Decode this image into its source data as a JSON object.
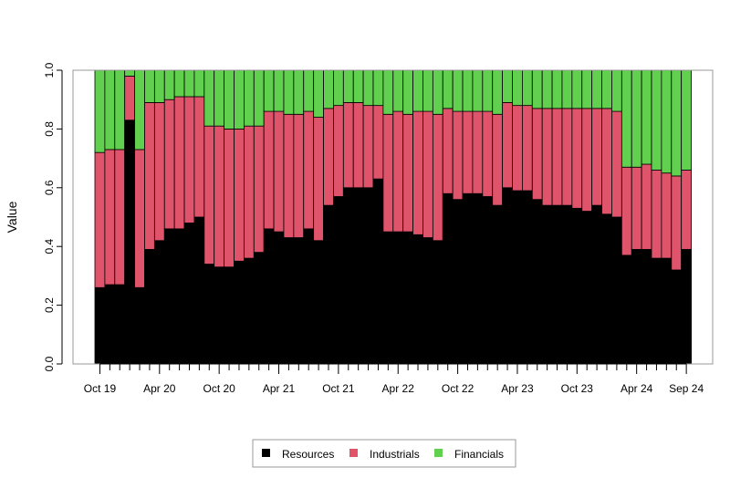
{
  "chart_data": {
    "type": "bar",
    "stacked": true,
    "title": "",
    "xlabel": "",
    "ylabel": "Value",
    "ylim": [
      0,
      1
    ],
    "y_ticks": [
      "0.0",
      "0.2",
      "0.4",
      "0.6",
      "0.8",
      "1.0"
    ],
    "x_tick_labels": [
      "Oct 19",
      "Apr 20",
      "Oct 20",
      "Apr 21",
      "Oct 21",
      "Apr 22",
      "Oct 22",
      "Apr 23",
      "Oct 23",
      "Apr 24",
      "Sep 24"
    ],
    "x_tick_label_bar_index": [
      0,
      6,
      12,
      18,
      24,
      30,
      36,
      42,
      48,
      54,
      59
    ],
    "grid": false,
    "legend_position": "bottom",
    "categories": [
      "Oct 19",
      "Nov 19",
      "Dec 19",
      "Jan 20",
      "Feb 20",
      "Mar 20",
      "Apr 20",
      "May 20",
      "Jun 20",
      "Jul 20",
      "Aug 20",
      "Sep 20",
      "Oct 20",
      "Nov 20",
      "Dec 20",
      "Jan 21",
      "Feb 21",
      "Mar 21",
      "Apr 21",
      "May 21",
      "Jun 21",
      "Jul 21",
      "Aug 21",
      "Sep 21",
      "Oct 21",
      "Nov 21",
      "Dec 21",
      "Jan 22",
      "Feb 22",
      "Mar 22",
      "Apr 22",
      "May 22",
      "Jun 22",
      "Jul 22",
      "Aug 22",
      "Sep 22",
      "Oct 22",
      "Nov 22",
      "Dec 22",
      "Jan 23",
      "Feb 23",
      "Mar 23",
      "Apr 23",
      "May 23",
      "Jun 23",
      "Jul 23",
      "Aug 23",
      "Sep 23",
      "Oct 23",
      "Nov 23",
      "Dec 23",
      "Jan 24",
      "Feb 24",
      "Mar 24",
      "Apr 24",
      "May 24",
      "Jun 24",
      "Jul 24",
      "Aug 24",
      "Sep 24"
    ],
    "series": [
      {
        "name": "Resources",
        "color": "#000000",
        "values": [
          0.26,
          0.27,
          0.27,
          0.83,
          0.26,
          0.39,
          0.42,
          0.46,
          0.46,
          0.48,
          0.5,
          0.34,
          0.33,
          0.33,
          0.35,
          0.36,
          0.38,
          0.46,
          0.45,
          0.43,
          0.43,
          0.46,
          0.42,
          0.54,
          0.57,
          0.6,
          0.6,
          0.6,
          0.63,
          0.45,
          0.45,
          0.45,
          0.44,
          0.43,
          0.42,
          0.58,
          0.56,
          0.58,
          0.58,
          0.57,
          0.54,
          0.6,
          0.59,
          0.59,
          0.56,
          0.54,
          0.54,
          0.54,
          0.53,
          0.52,
          0.54,
          0.51,
          0.5,
          0.37,
          0.39,
          0.39,
          0.36,
          0.36,
          0.32,
          0.39
        ]
      },
      {
        "name": "Industrials",
        "color": "#DF536B",
        "values": [
          0.46,
          0.46,
          0.46,
          0.15,
          0.47,
          0.5,
          0.47,
          0.44,
          0.45,
          0.43,
          0.41,
          0.47,
          0.48,
          0.47,
          0.45,
          0.45,
          0.43,
          0.4,
          0.41,
          0.42,
          0.42,
          0.4,
          0.42,
          0.33,
          0.31,
          0.29,
          0.29,
          0.28,
          0.25,
          0.4,
          0.41,
          0.4,
          0.42,
          0.43,
          0.43,
          0.29,
          0.3,
          0.28,
          0.28,
          0.29,
          0.31,
          0.29,
          0.29,
          0.29,
          0.31,
          0.33,
          0.33,
          0.33,
          0.34,
          0.35,
          0.33,
          0.36,
          0.36,
          0.3,
          0.28,
          0.29,
          0.3,
          0.29,
          0.32,
          0.27
        ]
      },
      {
        "name": "Financials",
        "color": "#61D04F",
        "values": [
          0.28,
          0.27,
          0.27,
          0.02,
          0.27,
          0.11,
          0.11,
          0.1,
          0.09,
          0.09,
          0.09,
          0.19,
          0.19,
          0.2,
          0.2,
          0.19,
          0.19,
          0.14,
          0.14,
          0.15,
          0.15,
          0.14,
          0.16,
          0.13,
          0.12,
          0.11,
          0.11,
          0.12,
          0.12,
          0.15,
          0.14,
          0.15,
          0.14,
          0.14,
          0.15,
          0.13,
          0.14,
          0.14,
          0.14,
          0.14,
          0.15,
          0.11,
          0.12,
          0.12,
          0.13,
          0.13,
          0.13,
          0.13,
          0.13,
          0.13,
          0.13,
          0.13,
          0.14,
          0.33,
          0.33,
          0.32,
          0.34,
          0.35,
          0.36,
          0.34
        ]
      }
    ]
  }
}
